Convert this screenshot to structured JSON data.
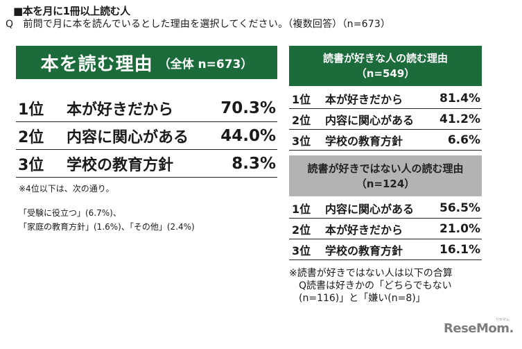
{
  "header": {
    "section_title": "■本を月に1冊以上読む人",
    "question": "Q　前問で月に本を読んでいるとした理由を選択してください。（複数回答）（n=673）"
  },
  "overall": {
    "banner_title": "本を読む理由",
    "banner_sub": "（全体 n=673）",
    "rows": [
      {
        "rank": "1位",
        "label": "本が好きだから",
        "pct": "70.3%"
      },
      {
        "rank": "2位",
        "label": "内容に関心がある",
        "pct": "44.0%"
      },
      {
        "rank": "3位",
        "label": "学校の教育方針",
        "pct": "8.3%"
      }
    ],
    "note_heading": "※4位以下は、次の通り。",
    "note_line1": "「受験に役立つ」(6.7%)、",
    "note_line2": "「家庭の教育方針」(1.6%)、「その他」(2.4%)"
  },
  "likes_reading": {
    "header_line1": "読書が好きな人の読む理由",
    "header_line2": "（n=549）",
    "rows": [
      {
        "rank": "1位",
        "label": "本が好きだから",
        "pct": "81.4%"
      },
      {
        "rank": "2位",
        "label": "内容に関心がある",
        "pct": "41.2%"
      },
      {
        "rank": "3位",
        "label": "学校の教育方針",
        "pct": "6.6%"
      }
    ]
  },
  "not_likes_reading": {
    "header_line1": "読書が好きではない人の読む理由",
    "header_line2": "（n=124）",
    "rows": [
      {
        "rank": "1位",
        "label": "内容に関心がある",
        "pct": "56.5%"
      },
      {
        "rank": "2位",
        "label": "本が好きだから",
        "pct": "21.0%"
      },
      {
        "rank": "3位",
        "label": "学校の教育方針",
        "pct": "16.1%"
      }
    ],
    "note_line1": "※読書が好きではない人は以下の合算",
    "note_line2": "Q読書は好きかの「どちらでもない",
    "note_line3": "(n=116)」と「嫌い(n=8)」"
  },
  "branding": {
    "logo_text": "ReseMom.",
    "logo_kana": "リセマム"
  },
  "colors": {
    "green": "#1c6b3a",
    "gray": "#b3b3b3"
  }
}
